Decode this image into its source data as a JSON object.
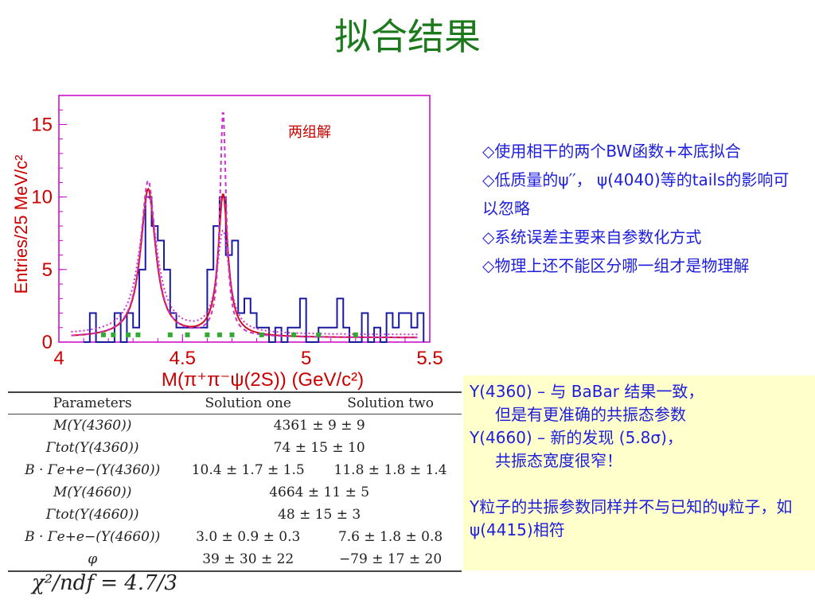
{
  "slide_title": "拟合结果",
  "chart_data": {
    "type": "bar",
    "xlabel": "M(π⁺π⁻ψ(2S)) (GeV/c²)",
    "ylabel": "Entries/25 MeV/c²",
    "annotation": "两组解",
    "xlim": [
      4.0,
      5.5
    ],
    "ylim": [
      0,
      17
    ],
    "x_ticks": [
      "4",
      "4.5",
      "5",
      "5.5"
    ],
    "y_ticks": [
      "0",
      "5",
      "10",
      "15"
    ],
    "bin_width": 0.025,
    "series": [
      {
        "values": [
          {
            "x": 4.1,
            "y": 0
          },
          {
            "x": 4.125,
            "y": 2
          },
          {
            "x": 4.15,
            "y": 0
          },
          {
            "x": 4.175,
            "y": 0
          },
          {
            "x": 4.2,
            "y": 0
          },
          {
            "x": 4.225,
            "y": 2
          },
          {
            "x": 4.25,
            "y": 0
          },
          {
            "x": 4.275,
            "y": 2
          },
          {
            "x": 4.3,
            "y": 1
          },
          {
            "x": 4.325,
            "y": 5
          },
          {
            "x": 4.35,
            "y": 10
          },
          {
            "x": 4.375,
            "y": 8
          },
          {
            "x": 4.4,
            "y": 7
          },
          {
            "x": 4.425,
            "y": 5
          },
          {
            "x": 4.45,
            "y": 2
          },
          {
            "x": 4.475,
            "y": 1
          },
          {
            "x": 4.5,
            "y": 1
          },
          {
            "x": 4.525,
            "y": 1
          },
          {
            "x": 4.55,
            "y": 1
          },
          {
            "x": 4.575,
            "y": 1
          },
          {
            "x": 4.6,
            "y": 5
          },
          {
            "x": 4.625,
            "y": 8
          },
          {
            "x": 4.65,
            "y": 10
          },
          {
            "x": 4.675,
            "y": 6
          },
          {
            "x": 4.7,
            "y": 7
          },
          {
            "x": 4.725,
            "y": 2
          },
          {
            "x": 4.75,
            "y": 3
          },
          {
            "x": 4.775,
            "y": 2
          },
          {
            "x": 4.8,
            "y": 1
          },
          {
            "x": 4.825,
            "y": 1
          },
          {
            "x": 4.85,
            "y": 0
          },
          {
            "x": 4.875,
            "y": 1
          },
          {
            "x": 4.9,
            "y": 0
          },
          {
            "x": 4.925,
            "y": 1
          },
          {
            "x": 4.95,
            "y": 1
          },
          {
            "x": 4.975,
            "y": 3
          },
          {
            "x": 5.0,
            "y": 0
          },
          {
            "x": 5.025,
            "y": 0
          },
          {
            "x": 5.05,
            "y": 1
          },
          {
            "x": 5.075,
            "y": 1
          },
          {
            "x": 5.1,
            "y": 1
          },
          {
            "x": 5.125,
            "y": 3
          },
          {
            "x": 5.15,
            "y": 1
          },
          {
            "x": 5.175,
            "y": 0
          },
          {
            "x": 5.2,
            "y": 0
          },
          {
            "x": 5.225,
            "y": 2
          },
          {
            "x": 5.25,
            "y": 0
          },
          {
            "x": 5.275,
            "y": 1
          },
          {
            "x": 5.3,
            "y": 0
          },
          {
            "x": 5.325,
            "y": 2
          },
          {
            "x": 5.35,
            "y": 1
          },
          {
            "x": 5.375,
            "y": 2
          },
          {
            "x": 5.4,
            "y": 2
          },
          {
            "x": 5.425,
            "y": 1
          },
          {
            "x": 5.45,
            "y": 2
          }
        ]
      }
    ],
    "colors": {
      "histogram": "#1a1aa0",
      "fit_one": "#d01020",
      "fit_two": "#cc33cc",
      "background": "#33aa33",
      "axis": "#cc0000",
      "frame": "#cc00cc"
    },
    "grid": false
  },
  "bullets": [
    "◇使用相干的两个BW函数+本底拟合",
    "◇低质量的ψ′′， ψ(4040)等的tails的影响可以忽略",
    "◇系统误差主要来自参数化方式",
    "◇物理上还不能区分哪一组才是物理解"
  ],
  "note_box": {
    "line1": "Y(4360) – 与 BaBar 结果一致，",
    "line2": "但是有更准确的共振态参数",
    "line3": "Y(4660) – 新的发现 (5.8σ)，",
    "line4": "共振态宽度很窄！",
    "line5": "Y粒子的共振参数同样并不与已知的ψ粒子，如ψ(4415)相符"
  },
  "table": {
    "headers": [
      "Parameters",
      "Solution one",
      "Solution two"
    ],
    "rows": [
      {
        "param": "M(Y(4360))",
        "one": "4361 ± 9 ± 9",
        "two": ""
      },
      {
        "param": "Γtot(Y(4360))",
        "one": "74 ± 15 ± 10",
        "two": ""
      },
      {
        "param": "B · Γe+e−(Y(4360))",
        "one": "10.4 ± 1.7 ± 1.5",
        "two": "11.8 ± 1.8 ± 1.4"
      },
      {
        "param": "M(Y(4660))",
        "one": "4664 ± 11 ± 5",
        "two": ""
      },
      {
        "param": "Γtot(Y(4660))",
        "one": "48 ± 15 ± 3",
        "two": ""
      },
      {
        "param": "B · Γe+e−(Y(4660))",
        "one": "3.0 ± 0.9 ± 0.3",
        "two": "7.6 ± 1.8 ± 0.8"
      },
      {
        "param": "φ",
        "one": "39 ± 30 ± 22",
        "two": "−79 ± 17 ± 20"
      }
    ]
  },
  "chi2": "χ²/ndf = 4.7/3"
}
